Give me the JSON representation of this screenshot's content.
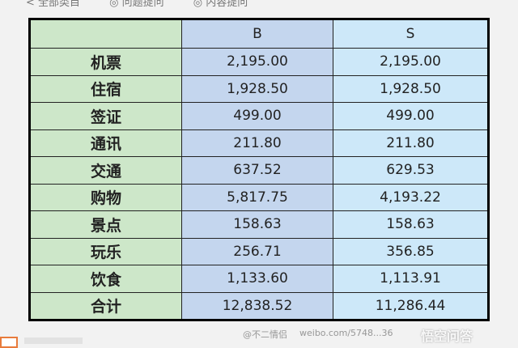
{
  "top_tabs": [
    "< 全部类目",
    "◎ 问题提问",
    "◎ 内容提问"
  ],
  "table": {
    "headers": [
      "",
      "B",
      "S"
    ],
    "rows": [
      [
        "机票",
        "2,195.00",
        "2,195.00"
      ],
      [
        "住宿",
        "1,928.50",
        "1,928.50"
      ],
      [
        "签证",
        "499.00",
        "499.00"
      ],
      [
        "通讯",
        "211.80",
        "211.80"
      ],
      [
        "交通",
        "637.52",
        "629.53"
      ],
      [
        "购物",
        "5,817.75",
        "4,193.22"
      ],
      [
        "景点",
        "158.63",
        "158.63"
      ],
      [
        "玩乐",
        "256.71",
        "356.85"
      ],
      [
        "饮食",
        "1,133.60",
        "1,113.91"
      ],
      [
        "合计",
        "12,838.52",
        "11,286.44"
      ]
    ]
  },
  "watermark": {
    "handle": "@不二情侣",
    "url": "weibo.com/5748...36",
    "brand": "悟空问答"
  }
}
